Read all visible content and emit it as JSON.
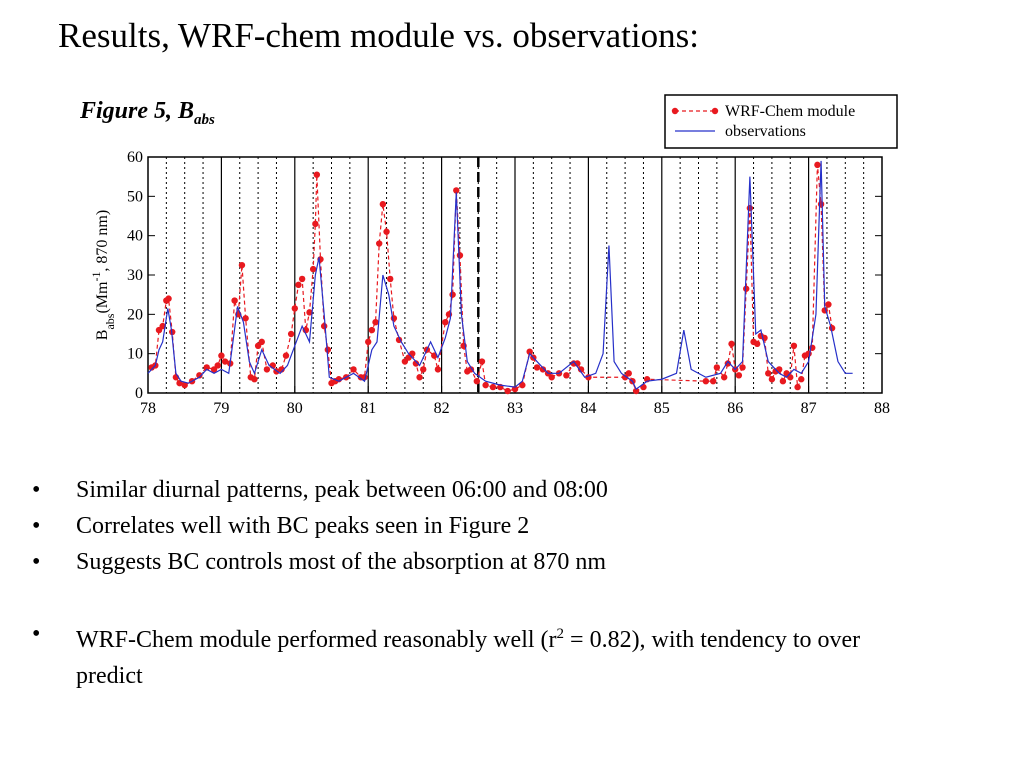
{
  "slide": {
    "title": "Results, WRF-chem module vs. observations:",
    "caption_parts": [
      "Figure 5, B",
      "abs"
    ],
    "bullets": [
      [
        "Similar diurnal patterns, peak between 06:00 and 08:00"
      ],
      [
        "Correlates well with BC peaks seen in Figure 2"
      ],
      [
        "Suggests BC controls most of the absorption at 870 nm"
      ],
      [
        "WRF-Chem module performed reasonably well (r",
        "2",
        " = 0.82), with tendency to over predict"
      ]
    ]
  },
  "chart_data": {
    "type": "line",
    "y_label_parts": [
      "B",
      "abs",
      "(Mm",
      "-1",
      ", 870 nm)"
    ],
    "xlim": [
      78,
      88
    ],
    "xticks": [
      78,
      79,
      80,
      81,
      82,
      83,
      84,
      85,
      86,
      87,
      88
    ],
    "ylim": [
      0,
      60
    ],
    "yticks": [
      0,
      10,
      20,
      30,
      40,
      50,
      60
    ],
    "dashed_line_x": 82.5,
    "legend": "top-right",
    "series": [
      {
        "name": "WRF-Chem module",
        "color": "#e8191f",
        "markers": true,
        "dashed": true,
        "x": [
          78.05,
          78.1,
          78.15,
          78.2,
          78.25,
          78.28,
          78.33,
          78.38,
          78.43,
          78.5,
          78.6,
          78.7,
          78.8,
          78.9,
          78.95,
          79.0,
          79.05,
          79.12,
          79.18,
          79.23,
          79.28,
          79.33,
          79.4,
          79.45,
          79.5,
          79.55,
          79.62,
          79.7,
          79.75,
          79.82,
          79.88,
          79.95,
          80.0,
          80.05,
          80.1,
          80.15,
          80.2,
          80.25,
          80.28,
          80.3,
          80.35,
          80.4,
          80.45,
          80.5,
          80.55,
          80.6,
          80.7,
          80.8,
          80.9,
          80.95,
          81.0,
          81.05,
          81.1,
          81.15,
          81.2,
          81.25,
          81.3,
          81.35,
          81.42,
          81.5,
          81.55,
          81.6,
          81.65,
          81.7,
          81.75,
          81.8,
          81.9,
          81.95,
          82.05,
          82.1,
          82.15,
          82.2,
          82.25,
          82.3,
          82.35,
          82.4,
          82.48,
          82.55,
          82.6,
          82.7,
          82.8,
          82.9,
          83.0,
          83.1,
          83.2,
          83.25,
          83.3,
          83.38,
          83.45,
          83.5,
          83.6,
          83.7,
          83.8,
          83.85,
          83.9,
          84.0,
          84.5,
          84.55,
          84.6,
          84.65,
          84.75,
          84.8,
          85.6,
          85.7,
          85.75,
          85.85,
          85.9,
          85.95,
          86.0,
          86.05,
          86.1,
          86.15,
          86.2,
          86.25,
          86.3,
          86.35,
          86.4,
          86.45,
          86.5,
          86.55,
          86.6,
          86.65,
          86.7,
          86.75,
          86.8,
          86.85,
          86.9,
          86.95,
          87.0,
          87.05,
          87.12,
          87.17,
          87.22,
          87.27,
          87.32
        ],
        "values": [
          6.5,
          7,
          16,
          17,
          23.5,
          24,
          15.5,
          4,
          2.5,
          2,
          3,
          4.5,
          6.5,
          6,
          7,
          9.5,
          8,
          7.5,
          23.5,
          20,
          32.5,
          19,
          4,
          3.5,
          12,
          13,
          6,
          7,
          5.5,
          6,
          9.5,
          15,
          21.5,
          27.5,
          29,
          16,
          20.5,
          31.5,
          43,
          55.5,
          34,
          17,
          11,
          2.5,
          3,
          3.5,
          4,
          6,
          4,
          4,
          13,
          16,
          18,
          38,
          48,
          41,
          29,
          19,
          13.5,
          8,
          9,
          10,
          7.5,
          4,
          6,
          11,
          9.5,
          6,
          18,
          20,
          25,
          51.5,
          35,
          12,
          5.5,
          6,
          3,
          8,
          2,
          1.5,
          1.5,
          0.5,
          1,
          2,
          10.5,
          9,
          6.5,
          6,
          5,
          4,
          5,
          4.5,
          7.5,
          7.5,
          6,
          4,
          4,
          5,
          3,
          0.5,
          1.5,
          3.5,
          3,
          3,
          6.5,
          4,
          7.5,
          12.5,
          6,
          4.5,
          6.5,
          26.5,
          47,
          13,
          12.5,
          14.5,
          14,
          5,
          3.5,
          5.5,
          6,
          3,
          5,
          4,
          12,
          1.5,
          3.5,
          9.5,
          10,
          11.5,
          58,
          48,
          21,
          22.5,
          16.5
        ]
      },
      {
        "name": "observations",
        "color": "#2630c9",
        "markers": false,
        "dashed": false,
        "x": [
          78.0,
          78.1,
          78.15,
          78.2,
          78.27,
          78.32,
          78.38,
          78.45,
          78.55,
          78.7,
          78.8,
          78.9,
          79.0,
          79.1,
          79.15,
          79.22,
          79.3,
          79.38,
          79.45,
          79.55,
          79.65,
          79.8,
          79.9,
          80.0,
          80.1,
          80.2,
          80.28,
          80.33,
          80.4,
          80.47,
          80.6,
          80.8,
          80.95,
          81.05,
          81.12,
          81.2,
          81.28,
          81.35,
          81.45,
          81.55,
          81.7,
          81.85,
          81.95,
          82.05,
          82.12,
          82.2,
          82.27,
          82.35,
          82.45,
          82.6,
          82.8,
          83.0,
          83.1,
          83.2,
          83.3,
          83.45,
          83.6,
          83.8,
          83.95,
          84.1,
          84.2,
          84.28,
          84.35,
          84.45,
          84.6,
          84.65,
          84.8,
          85.0,
          85.2,
          85.3,
          85.4,
          85.6,
          85.8,
          85.9,
          86.0,
          86.1,
          86.2,
          86.28,
          86.35,
          86.45,
          86.6,
          86.7,
          86.8,
          86.9,
          87.0,
          87.1,
          87.17,
          87.22,
          87.3,
          87.4,
          87.5,
          87.6
        ],
        "values": [
          5,
          7,
          11,
          13,
          21.5,
          16,
          5,
          3,
          2.5,
          4,
          6,
          5,
          6,
          5,
          12,
          22,
          18,
          8,
          5,
          11,
          7,
          5,
          7,
          12,
          17,
          13,
          30,
          34.5,
          20,
          4,
          3,
          5,
          3,
          11,
          13,
          30,
          25,
          17,
          13,
          10,
          7,
          13,
          9,
          14,
          19,
          51,
          20,
          8,
          5,
          3,
          2,
          1.5,
          3,
          10,
          8,
          5,
          5,
          8,
          4,
          5,
          10,
          37.5,
          8,
          5,
          3,
          1,
          3,
          3.5,
          5,
          16,
          6,
          4,
          5,
          8,
          6,
          8,
          55,
          15,
          16,
          8,
          5,
          4,
          6,
          5,
          8,
          20,
          59,
          22,
          17,
          8,
          5,
          5
        ]
      }
    ]
  }
}
